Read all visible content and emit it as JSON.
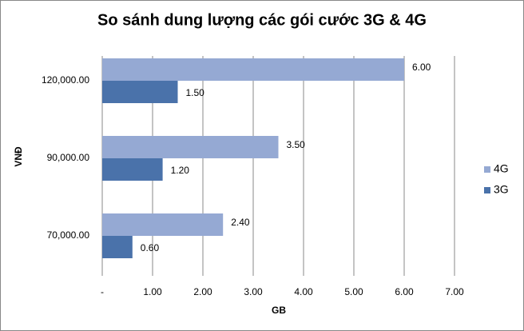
{
  "chart_data": {
    "type": "hbar",
    "title": "So sánh dung lượng các gói cước 3G & 4G",
    "x_label": "GB",
    "y_label": "VNĐ",
    "categories": [
      "120,000.00",
      "90,000.00",
      "70,000.00"
    ],
    "series": [
      {
        "name": "4G",
        "color": "#95a9d3",
        "values": [
          6,
          3.5,
          2.4
        ],
        "value_labels": [
          "6.00",
          "3.50",
          "2.40"
        ]
      },
      {
        "name": "3G",
        "color": "#4a72aa",
        "values": [
          1.5,
          1.2,
          0.6
        ],
        "value_labels": [
          "1.50",
          "1.20",
          "0.60"
        ]
      }
    ],
    "xlim": [
      0,
      7
    ],
    "xticks": [
      {
        "value": 0,
        "label": "-"
      },
      {
        "value": 1,
        "label": "1.00"
      },
      {
        "value": 2,
        "label": "2.00"
      },
      {
        "value": 3,
        "label": "3.00"
      },
      {
        "value": 4,
        "label": "4.00"
      },
      {
        "value": 5,
        "label": "5.00"
      },
      {
        "value": 6,
        "label": "6.00"
      },
      {
        "value": 7,
        "label": "7.00"
      }
    ],
    "grid": true,
    "legend": "right"
  }
}
